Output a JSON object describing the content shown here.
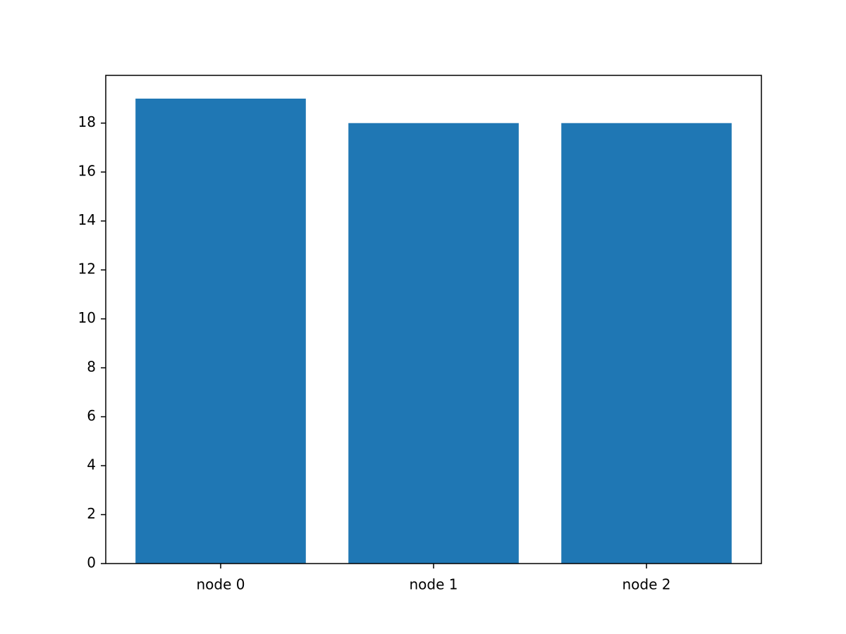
{
  "chart_data": {
    "type": "bar",
    "categories": [
      "node 0",
      "node 1",
      "node 2"
    ],
    "values": [
      19,
      18,
      18
    ],
    "color": "#1f77b4",
    "ylim": [
      0,
      19.95
    ],
    "yticks": [
      0,
      2,
      4,
      6,
      8,
      10,
      12,
      14,
      16,
      18
    ],
    "grid": false
  }
}
